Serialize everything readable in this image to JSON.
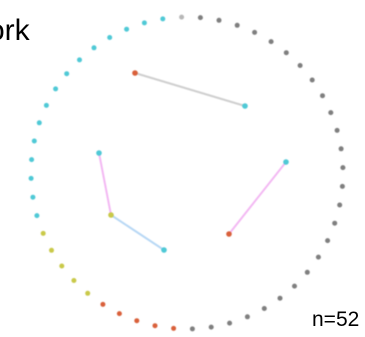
{
  "diagram": {
    "title_fragment": "ork",
    "count_label": "n=52",
    "ring": {
      "node_count": 52,
      "node_colors": [
        "#b7b7b7",
        "#7f7f7f",
        "#7f7f7f",
        "#7f7f7f",
        "#7f7f7f",
        "#7f7f7f",
        "#7f7f7f",
        "#7f7f7f",
        "#7f7f7f",
        "#7f7f7f",
        "#7f7f7f",
        "#7f7f7f",
        "#7f7f7f",
        "#7f7f7f",
        "#7f7f7f",
        "#7f7f7f",
        "#7f7f7f",
        "#7f7f7f",
        "#7f7f7f",
        "#7f7f7f",
        "#7f7f7f",
        "#7f7f7f",
        "#7f7f7f",
        "#7f7f7f",
        "#7f7f7f",
        "#7f7f7f",
        "#7f7f7f",
        "#d9603b",
        "#d9603b",
        "#d9603b",
        "#d9603b",
        "#d9603b",
        "#c9c94a",
        "#c9c94a",
        "#c9c94a",
        "#c9c94a",
        "#c9c94a",
        "#4fc9d6",
        "#4fc9d6",
        "#4fc9d6",
        "#4fc9d6",
        "#4fc9d6",
        "#4fc9d6",
        "#4fc9d6",
        "#4fc9d6",
        "#4fc9d6",
        "#4fc9d6",
        "#4fc9d6",
        "#4fc9d6",
        "#4fc9d6",
        "#4fc9d6",
        "#4fc9d6"
      ]
    },
    "inner_nodes": [
      {
        "id": "a",
        "color": "#d9603b"
      },
      {
        "id": "b",
        "color": "#4fc9d6"
      },
      {
        "id": "c",
        "color": "#4fc9d6"
      },
      {
        "id": "d",
        "color": "#c9c94a"
      },
      {
        "id": "e",
        "color": "#4fc9d6"
      },
      {
        "id": "f",
        "color": "#4fc9d6"
      },
      {
        "id": "g",
        "color": "#d9603b"
      }
    ],
    "edges": [
      {
        "from": "a",
        "to": "b",
        "color": "#cfcfcf"
      },
      {
        "from": "c",
        "to": "d",
        "color": "#f3b8f3"
      },
      {
        "from": "d",
        "to": "e",
        "color": "#b8d8f5"
      },
      {
        "from": "f",
        "to": "g",
        "color": "#f3b8f3"
      }
    ]
  }
}
